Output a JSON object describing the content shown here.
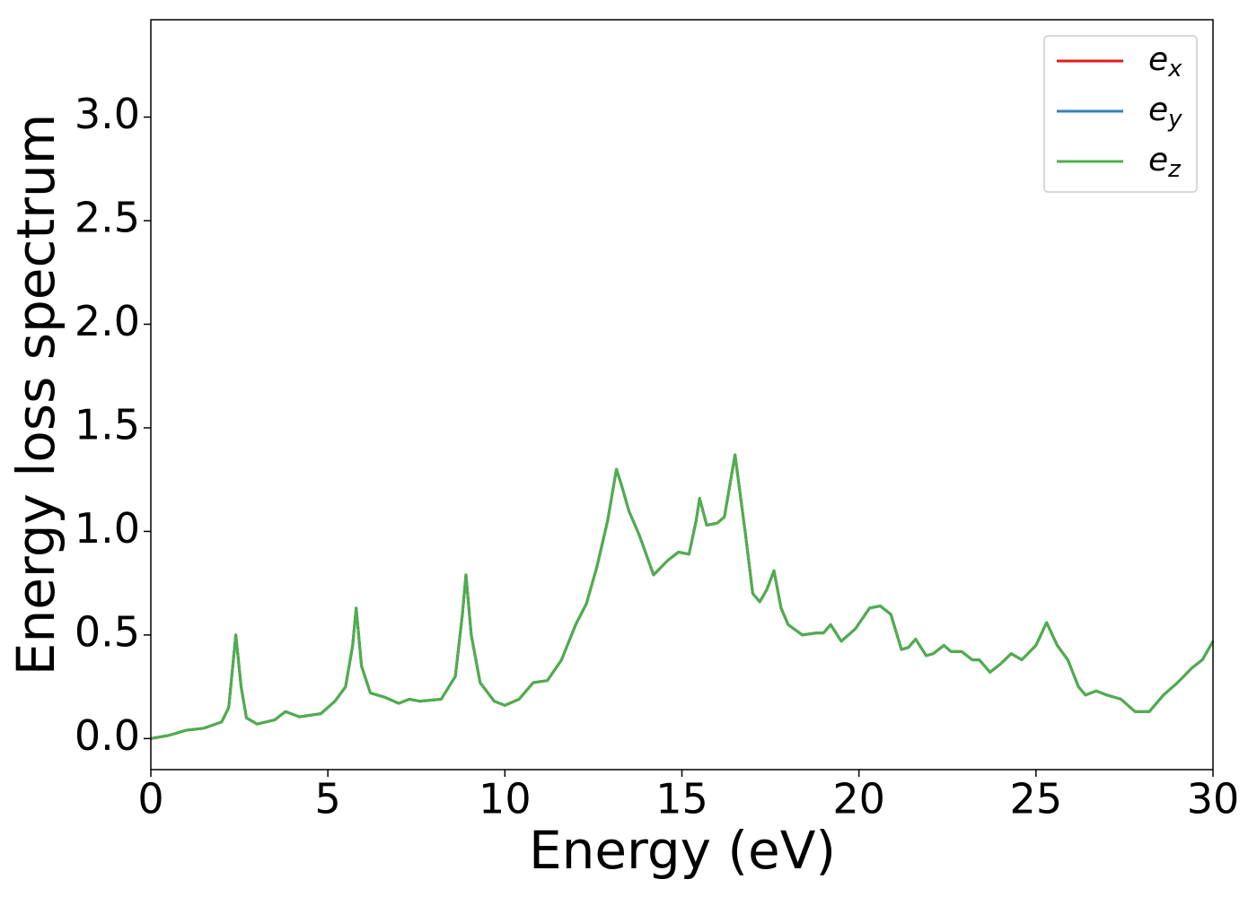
{
  "chart_data": {
    "type": "line",
    "xlabel": "Energy (eV)",
    "ylabel": "Energy loss spectrum",
    "xlim": [
      0,
      30
    ],
    "ylim": [
      -0.15,
      3.47
    ],
    "xticks": [
      0,
      5,
      10,
      15,
      20,
      25,
      30
    ],
    "yticks": [
      {
        "value": 0,
        "label": "0.0"
      },
      0.5,
      {
        "value": 1,
        "label": "1.0"
      },
      1.5,
      {
        "value": 2,
        "label": "2.0"
      },
      2.5,
      {
        "value": 3,
        "label": "3.0"
      }
    ],
    "legend": "upper right",
    "x": [
      0,
      0.5,
      1.0,
      1.5,
      2.0,
      2.2,
      2.4,
      2.55,
      2.7,
      3.0,
      3.5,
      3.8,
      4.2,
      4.8,
      5.2,
      5.5,
      5.7,
      5.8,
      5.95,
      6.2,
      6.6,
      7.0,
      7.3,
      7.6,
      8.2,
      8.6,
      8.8,
      8.9,
      9.05,
      9.3,
      9.7,
      10.0,
      10.4,
      10.8,
      11.2,
      11.6,
      12.0,
      12.3,
      12.6,
      12.9,
      13.15,
      13.3,
      13.5,
      13.8,
      14.2,
      14.6,
      14.9,
      15.2,
      15.4,
      15.5,
      15.7,
      16.0,
      16.2,
      16.5,
      16.8,
      17.0,
      17.2,
      17.4,
      17.6,
      17.8,
      18.0,
      18.4,
      18.8,
      19.0,
      19.2,
      19.5,
      19.9,
      20.3,
      20.6,
      20.9,
      21.2,
      21.4,
      21.6,
      21.9,
      22.1,
      22.4,
      22.6,
      22.9,
      23.2,
      23.4,
      23.7,
      24.0,
      24.3,
      24.6,
      25.0,
      25.3,
      25.6,
      25.9,
      26.2,
      26.4,
      26.7,
      27.0,
      27.4,
      27.8,
      28.2,
      28.6,
      29.0,
      29.4,
      29.7,
      30.0
    ],
    "series": [
      {
        "name": "e_x",
        "color": "#e41a1c",
        "values": [
          0,
          0.015,
          0.04,
          0.05,
          0.08,
          0.15,
          0.5,
          0.25,
          0.1,
          0.07,
          0.09,
          0.13,
          0.105,
          0.12,
          0.18,
          0.25,
          0.45,
          0.63,
          0.35,
          0.22,
          0.2,
          0.17,
          0.19,
          0.18,
          0.19,
          0.3,
          0.6,
          0.79,
          0.5,
          0.27,
          0.18,
          0.16,
          0.19,
          0.27,
          0.28,
          0.38,
          0.55,
          0.65,
          0.83,
          1.05,
          1.3,
          1.22,
          1.1,
          0.98,
          0.79,
          0.86,
          0.9,
          0.89,
          1.05,
          1.16,
          1.03,
          1.04,
          1.07,
          1.37,
          0.98,
          0.7,
          0.66,
          0.72,
          0.81,
          0.63,
          0.55,
          0.5,
          0.51,
          0.51,
          0.55,
          0.47,
          0.53,
          0.63,
          0.64,
          0.6,
          0.43,
          0.44,
          0.48,
          0.4,
          0.41,
          0.45,
          0.42,
          0.42,
          0.38,
          0.38,
          0.32,
          0.36,
          0.41,
          0.38,
          0.45,
          0.56,
          0.45,
          0.38,
          0.25,
          0.21,
          0.23,
          0.21,
          0.19,
          0.13,
          0.13,
          0.21,
          0.27,
          0.34,
          0.38,
          0.47
        ]
      },
      {
        "name": "e_y",
        "color": "#377eb8",
        "values": [
          0,
          0.015,
          0.04,
          0.05,
          0.08,
          0.15,
          0.5,
          0.25,
          0.1,
          0.07,
          0.09,
          0.13,
          0.105,
          0.12,
          0.18,
          0.25,
          0.45,
          0.63,
          0.35,
          0.22,
          0.2,
          0.17,
          0.19,
          0.18,
          0.19,
          0.3,
          0.6,
          0.79,
          0.5,
          0.27,
          0.18,
          0.16,
          0.19,
          0.27,
          0.28,
          0.38,
          0.55,
          0.65,
          0.83,
          1.05,
          1.3,
          1.22,
          1.1,
          0.98,
          0.79,
          0.86,
          0.9,
          0.89,
          1.05,
          1.16,
          1.03,
          1.04,
          1.07,
          1.37,
          0.98,
          0.7,
          0.66,
          0.72,
          0.81,
          0.63,
          0.55,
          0.5,
          0.51,
          0.51,
          0.55,
          0.47,
          0.53,
          0.63,
          0.64,
          0.6,
          0.43,
          0.44,
          0.48,
          0.4,
          0.41,
          0.45,
          0.42,
          0.42,
          0.38,
          0.38,
          0.32,
          0.36,
          0.41,
          0.38,
          0.45,
          0.56,
          0.45,
          0.38,
          0.25,
          0.21,
          0.23,
          0.21,
          0.19,
          0.13,
          0.13,
          0.21,
          0.27,
          0.34,
          0.38,
          0.47
        ]
      },
      {
        "name": "e_z",
        "color": "#4daf4a",
        "values": [
          0,
          0.015,
          0.04,
          0.05,
          0.08,
          0.15,
          0.5,
          0.25,
          0.1,
          0.07,
          0.09,
          0.13,
          0.105,
          0.12,
          0.18,
          0.25,
          0.45,
          0.63,
          0.35,
          0.22,
          0.2,
          0.17,
          0.19,
          0.18,
          0.19,
          0.3,
          0.6,
          0.79,
          0.5,
          0.27,
          0.18,
          0.16,
          0.19,
          0.27,
          0.28,
          0.38,
          0.55,
          0.65,
          0.83,
          1.05,
          1.3,
          1.22,
          1.1,
          0.98,
          0.79,
          0.86,
          0.9,
          0.89,
          1.05,
          1.16,
          1.03,
          1.04,
          1.07,
          1.37,
          0.98,
          0.7,
          0.66,
          0.72,
          0.81,
          0.63,
          0.55,
          0.5,
          0.51,
          0.51,
          0.55,
          0.47,
          0.53,
          0.63,
          0.64,
          0.6,
          0.43,
          0.44,
          0.48,
          0.4,
          0.41,
          0.45,
          0.42,
          0.42,
          0.38,
          0.38,
          0.32,
          0.36,
          0.41,
          0.38,
          0.45,
          0.56,
          0.45,
          0.38,
          0.25,
          0.21,
          0.23,
          0.21,
          0.19,
          0.13,
          0.13,
          0.21,
          0.27,
          0.34,
          0.38,
          0.47
        ]
      }
    ]
  }
}
